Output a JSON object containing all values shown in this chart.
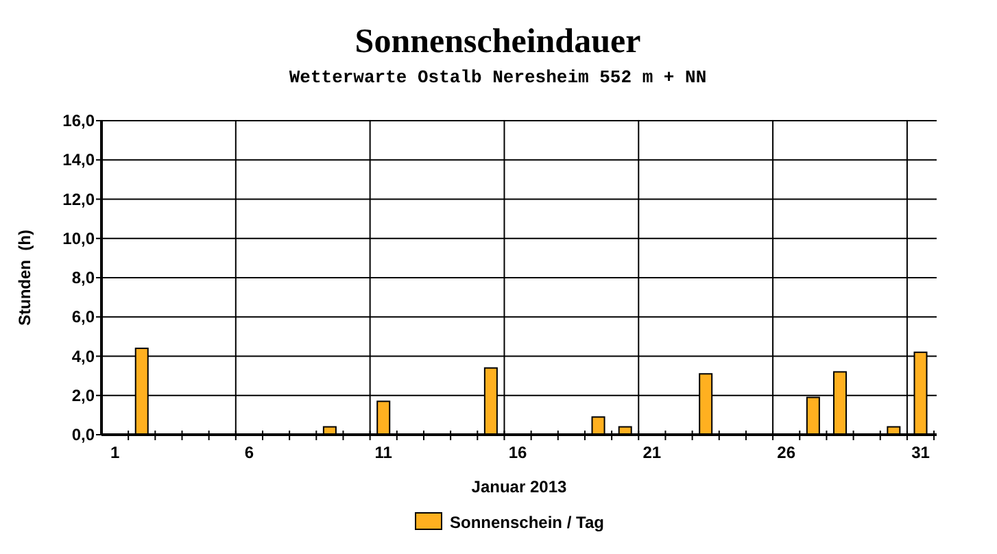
{
  "chart_data": {
    "type": "bar",
    "title": "Sonnenscheindauer",
    "subtitle": "Wetterwarte Ostalb Neresheim 552 m + NN",
    "xlabel": "Januar 2013",
    "ylabel": "Stunden  (h)",
    "x": [
      1,
      2,
      3,
      4,
      5,
      6,
      7,
      8,
      9,
      10,
      11,
      12,
      13,
      14,
      15,
      16,
      17,
      18,
      19,
      20,
      21,
      22,
      23,
      24,
      25,
      26,
      27,
      28,
      29,
      30,
      31
    ],
    "series": [
      {
        "name": "Sonnenschein / Tag",
        "color": "#ffb020",
        "values": [
          0,
          4.4,
          0,
          0,
          0,
          0,
          0,
          0,
          0.4,
          0,
          1.7,
          0,
          0,
          0,
          3.4,
          0,
          0,
          0,
          0.9,
          0.4,
          0,
          0,
          3.1,
          0,
          0,
          0,
          1.9,
          3.2,
          0,
          0.4,
          4.2
        ]
      }
    ],
    "xlim": [
      0.5,
      31.6
    ],
    "xticks": [
      1,
      6,
      11,
      16,
      21,
      26,
      31,
      {
        "value": 1.5,
        "label": null
      },
      {
        "value": 2.5,
        "label": null
      },
      {
        "value": 3.5,
        "label": null
      },
      {
        "value": 4.5,
        "label": null
      },
      {
        "value": 5.5,
        "label": null
      },
      {
        "value": 6.5,
        "label": null
      },
      {
        "value": 7.5,
        "label": null
      },
      {
        "value": 8.5,
        "label": null
      },
      {
        "value": 9.5,
        "label": null
      },
      {
        "value": 10.5,
        "label": null
      },
      {
        "value": 11.5,
        "label": null
      },
      {
        "value": 12.5,
        "label": null
      },
      {
        "value": 13.5,
        "label": null
      },
      {
        "value": 14.5,
        "label": null
      },
      {
        "value": 15.5,
        "label": null
      },
      {
        "value": 16.5,
        "label": null
      },
      {
        "value": 17.5,
        "label": null
      },
      {
        "value": 18.5,
        "label": null
      },
      {
        "value": 19.5,
        "label": null
      },
      {
        "value": 20.5,
        "label": null
      },
      {
        "value": 21.5,
        "label": null
      },
      {
        "value": 22.5,
        "label": null
      },
      {
        "value": 23.5,
        "label": null
      },
      {
        "value": 24.5,
        "label": null
      },
      {
        "value": 25.5,
        "label": null
      },
      {
        "value": 26.5,
        "label": null
      },
      {
        "value": 27.5,
        "label": null
      },
      {
        "value": 28.5,
        "label": null
      },
      {
        "value": 29.5,
        "label": null
      },
      {
        "value": 30.5,
        "label": null
      },
      {
        "value": 31.5,
        "label": null
      }
    ],
    "ylim": [
      0,
      16
    ],
    "yticks": [
      {
        "value": 0,
        "label": "0,0"
      },
      {
        "value": 2,
        "label": "2,0"
      },
      {
        "value": 4,
        "label": "4,0"
      },
      {
        "value": 6,
        "label": "6,0"
      },
      {
        "value": 8,
        "label": "8,0"
      },
      {
        "value": 10,
        "label": "10,0"
      },
      {
        "value": 12,
        "label": "12,0"
      },
      {
        "value": 14,
        "label": "14,0"
      },
      {
        "value": 16,
        "label": "16,0"
      }
    ],
    "grid": "y",
    "ref_lines": [
      {
        "axis": "x",
        "value": 5.5,
        "color": "#000000"
      },
      {
        "axis": "x",
        "value": 10.5,
        "color": "#000000"
      },
      {
        "axis": "x",
        "value": 15.5,
        "color": "#000000"
      },
      {
        "axis": "x",
        "value": 20.5,
        "color": "#000000"
      },
      {
        "axis": "x",
        "value": 25.5,
        "color": "#000000"
      },
      {
        "axis": "x",
        "value": 30.5,
        "color": "#000000"
      }
    ],
    "legend": "bottom"
  }
}
